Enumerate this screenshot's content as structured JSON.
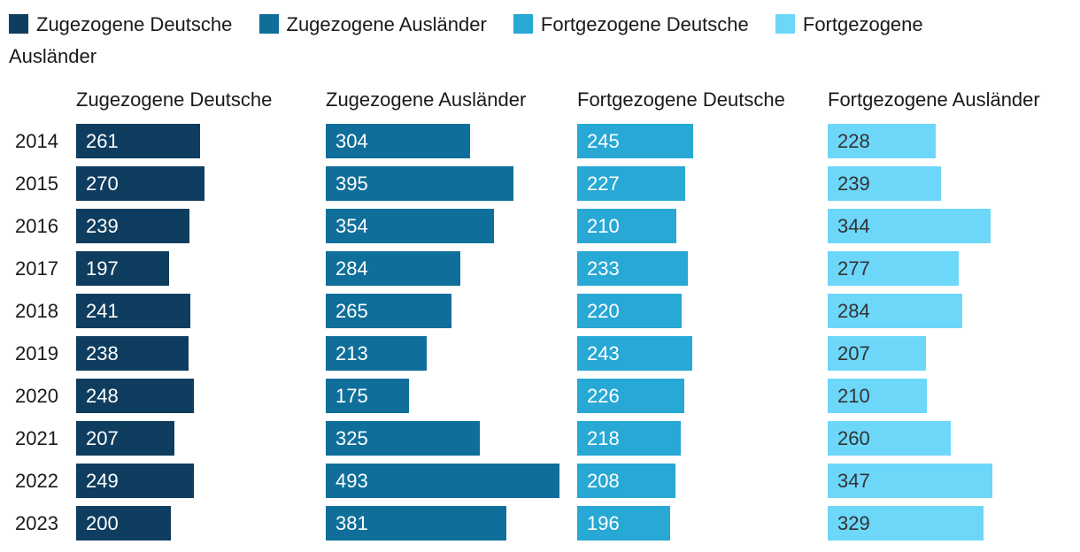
{
  "legend": {
    "items": [
      {
        "label": "Zugezogene Deutsche",
        "color": "#0e3d5f"
      },
      {
        "label": "Zugezogene Ausländer",
        "color": "#0f6f9a"
      },
      {
        "label": "Fortgezogene Deutsche",
        "color": "#27a8d5"
      },
      {
        "label": "Fortgezogene Ausländer",
        "color": "#6dd7fa"
      }
    ]
  },
  "chart_data": {
    "type": "bar",
    "orientation": "horizontal",
    "title": "",
    "categories": [
      "2014",
      "2015",
      "2016",
      "2017",
      "2018",
      "2019",
      "2020",
      "2021",
      "2022",
      "2023"
    ],
    "series": [
      {
        "name": "Zugezogene Deutsche",
        "color": "#0e3d5f",
        "label_color": "#ffffff",
        "values": [
          261,
          270,
          239,
          197,
          241,
          238,
          248,
          207,
          249,
          200
        ]
      },
      {
        "name": "Zugezogene Ausländer",
        "color": "#0f6f9a",
        "label_color": "#ffffff",
        "values": [
          304,
          395,
          354,
          284,
          265,
          213,
          175,
          325,
          493,
          381
        ]
      },
      {
        "name": "Fortgezogene Deutsche",
        "color": "#27a8d5",
        "label_color": "#ffffff",
        "values": [
          245,
          227,
          210,
          233,
          220,
          243,
          226,
          218,
          208,
          196
        ]
      },
      {
        "name": "Fortgezogene Ausländer",
        "color": "#6dd7fa",
        "label_color": "#333333",
        "values": [
          228,
          239,
          344,
          277,
          284,
          207,
          210,
          260,
          347,
          329
        ]
      }
    ],
    "xmax": 493,
    "grid": false,
    "value_labels": "inside-start",
    "legend_position": "top"
  }
}
